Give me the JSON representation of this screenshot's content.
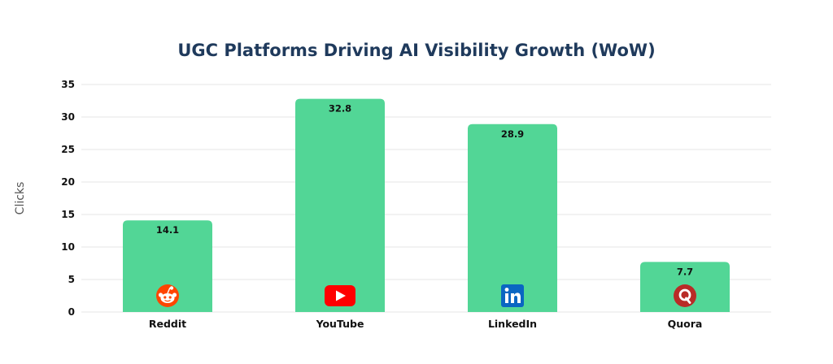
{
  "chart_data": {
    "type": "bar",
    "title": "UGC Platforms Driving AI Visibility Growth (WoW)",
    "xlabel": "",
    "ylabel": "Clicks",
    "categories": [
      "Reddit",
      "YouTube",
      "LinkedIn",
      "Quora"
    ],
    "values": [
      14.1,
      32.8,
      28.9,
      7.7
    ],
    "data_labels": [
      "14.1",
      "32.8",
      "28.9",
      "7.7"
    ],
    "ylim": [
      0,
      35
    ],
    "yticks": [
      0,
      5,
      10,
      15,
      20,
      25,
      30,
      35
    ],
    "grid": true,
    "legend": "none",
    "bar_color": "#52d696",
    "icons": [
      "reddit-icon",
      "youtube-icon",
      "linkedin-icon",
      "quora-icon"
    ],
    "icon_colors": {
      "reddit": "#ff4500",
      "youtube": "#ff0000",
      "linkedin": "#0a66c2",
      "quora": "#b92b27"
    }
  }
}
